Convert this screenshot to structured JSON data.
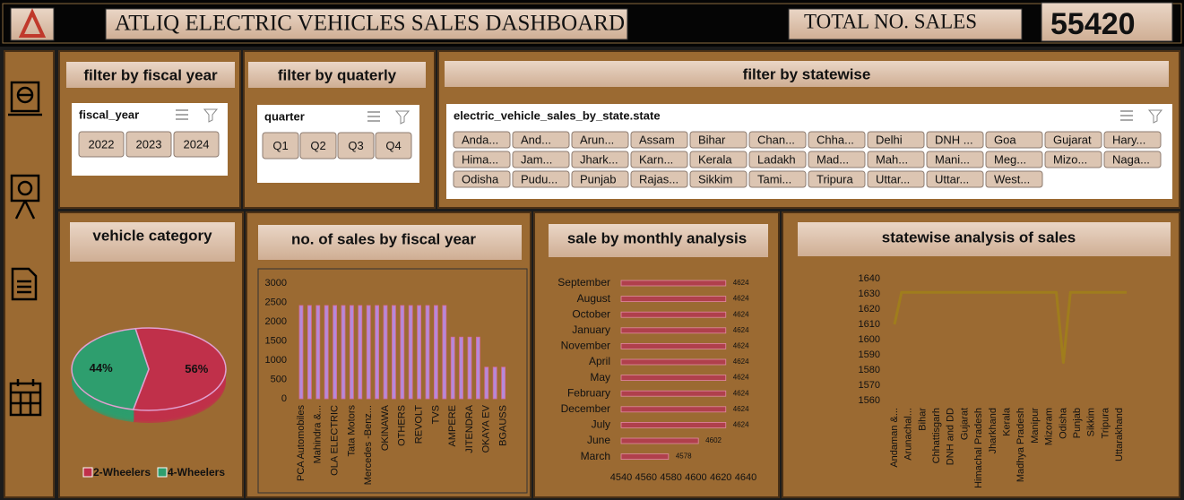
{
  "header": {
    "title": "ATLIQ ELECTRIC VEHICLES SALES DASHBOARD",
    "total_label": "TOTAL NO. SALES",
    "total_value": 55420
  },
  "filters": [
    {
      "title": "filter by fiscal year",
      "header": "fiscal_year",
      "items": [
        "2022",
        "2023",
        "2024"
      ]
    },
    {
      "title": "filter by quaterly",
      "header": "quarter",
      "items": [
        "Q1",
        "Q2",
        "Q3",
        "Q4"
      ]
    },
    {
      "title": "filter by statewise",
      "header": "electric_vehicle_sales_by_state.state",
      "items": [
        "Anda...",
        "And...",
        "Arun...",
        "Assam",
        "Bihar",
        "Chan...",
        "Chha...",
        "Delhi",
        "DNH ...",
        "Goa",
        "Gujarat",
        "Hary...",
        "Hima...",
        "Jam...",
        "Jhark...",
        "Karn...",
        "Kerala",
        "Ladakh",
        "Mad...",
        "Mah...",
        "Mani...",
        "Meg...",
        "Mizo...",
        "Naga...",
        "Odisha",
        "Pudu...",
        "Punjab",
        "Rajas...",
        "Sikkim",
        "Tami...",
        "Tripura",
        "Uttar...",
        "Uttar...",
        "West..."
      ]
    }
  ],
  "chart_data": [
    {
      "type": "pie",
      "title": "vehicle category",
      "categories": [
        "2-Wheelers",
        "4-Wheelers"
      ],
      "values": [
        56,
        44
      ],
      "value_labels": [
        "56%",
        "44%"
      ],
      "colors": [
        "#c0304a",
        "#2e9e6e"
      ],
      "legend": "bottom"
    },
    {
      "type": "bar",
      "title": "no. of sales by fiscal year",
      "categories": [
        "PCA Automobiles",
        null,
        "Mahindra &...",
        null,
        "OLA ELECTRIC",
        null,
        "Tata Motors",
        null,
        "Mercedes -Benz...",
        null,
        "OKINAWA",
        null,
        "OTHERS",
        null,
        "REVOLT",
        null,
        "TVS",
        null,
        "AMPERE",
        null,
        "JITENDRA",
        null,
        "OKAYA EV",
        null,
        "BGAUSS"
      ],
      "values": [
        2420,
        2420,
        2420,
        2420,
        2420,
        2420,
        2420,
        2420,
        2420,
        2420,
        2420,
        2420,
        2420,
        2420,
        2420,
        2420,
        2420,
        2420,
        1600,
        1600,
        1600,
        1600,
        820,
        820,
        820
      ],
      "color": "#b58ad8",
      "ylim": [
        0,
        3000
      ],
      "yticks": [
        0,
        500,
        1000,
        1500,
        2000,
        2500,
        3000
      ],
      "grid": false
    },
    {
      "type": "bar",
      "orientation": "horizontal",
      "title": "sale by monthly analysis",
      "categories": [
        "September",
        "August",
        "October",
        "January",
        "November",
        "April",
        "May",
        "February",
        "December",
        "July",
        "June",
        "March"
      ],
      "values": [
        4624,
        4624,
        4624,
        4624,
        4624,
        4624,
        4624,
        4624,
        4624,
        4624,
        4602,
        4578
      ],
      "color": "#b0404c",
      "xlim": [
        4540,
        4640
      ],
      "xticks": [
        4540,
        4560,
        4580,
        4600,
        4620,
        4640
      ],
      "grid": false
    },
    {
      "type": "line",
      "title": "statewise analysis of sales",
      "categories": [
        "Andaman &...",
        null,
        "Arunachal...",
        null,
        "Bihar",
        null,
        "Chhattisgarh",
        null,
        "DNH and DD",
        null,
        "Gujarat",
        null,
        "Himachal Pradesh",
        null,
        "Jharkhand",
        null,
        "Kerala",
        null,
        "Madhya Pradesh",
        null,
        "Manipur",
        null,
        "Mizoram",
        null,
        "Odisha",
        null,
        "Punjab",
        null,
        "Sikkim",
        null,
        "Tripura",
        null,
        "Uttarakhand",
        null
      ],
      "values": [
        1610,
        1631,
        1631,
        1631,
        1631,
        1631,
        1631,
        1631,
        1631,
        1631,
        1631,
        1631,
        1631,
        1631,
        1631,
        1631,
        1631,
        1631,
        1631,
        1631,
        1631,
        1631,
        1631,
        1631,
        1585,
        1631,
        1631,
        1631,
        1631,
        1631,
        1631,
        1631,
        1631,
        1631
      ],
      "color": "#a07d1c",
      "ylim": [
        1560,
        1640
      ],
      "yticks": [
        1560,
        1570,
        1580,
        1590,
        1600,
        1610,
        1620,
        1630,
        1640
      ],
      "grid": false
    }
  ]
}
